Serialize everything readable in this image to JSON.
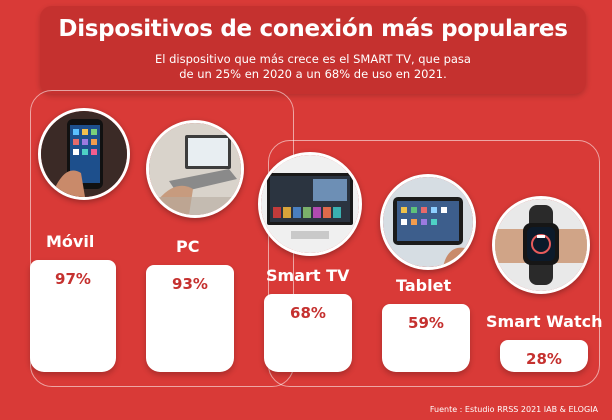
{
  "header": {
    "title": "Dispositivos de conexión más populares",
    "subtitle_line1": "El dispositivo que más crece es el SMART TV, que pasa",
    "subtitle_line2": "de un 25% en 2020 a un 68% de uso en 2021."
  },
  "source": "Fuente : Estudio RRSS 2021 IAB & ELOGIA",
  "colors": {
    "background": "#d93a37",
    "header_box": "#c5312f",
    "bar": "#ffffff",
    "value_text": "#c5312f"
  },
  "chart_data": {
    "type": "bar",
    "categories": [
      "Móvil",
      "PC",
      "Smart TV",
      "Tablet",
      "Smart Watch"
    ],
    "values": [
      97,
      93,
      68,
      59,
      28
    ],
    "value_labels": [
      "97%",
      "93%",
      "68%",
      "59%",
      "28%"
    ],
    "unit": "%",
    "ylim": [
      0,
      100
    ],
    "grid": false,
    "icons": [
      "smartphone-photo",
      "laptop-photo",
      "smart-tv-photo",
      "tablet-photo",
      "smartwatch-photo"
    ]
  }
}
